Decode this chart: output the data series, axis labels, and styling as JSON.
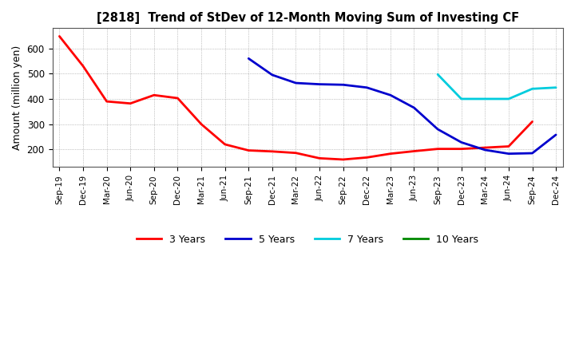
{
  "title": "[2818]  Trend of StDev of 12-Month Moving Sum of Investing CF",
  "ylabel": "Amount (million yen)",
  "background_color": "#ffffff",
  "grid_color": "#888888",
  "ylim": [
    130,
    680
  ],
  "yticks": [
    200,
    300,
    400,
    500,
    600
  ],
  "legend": [
    "3 Years",
    "5 Years",
    "7 Years",
    "10 Years"
  ],
  "legend_colors": [
    "#ff0000",
    "#0000cd",
    "#00ccdd",
    "#008800"
  ],
  "x_labels": [
    "Sep-19",
    "Dec-19",
    "Mar-20",
    "Jun-20",
    "Sep-20",
    "Dec-20",
    "Mar-21",
    "Jun-21",
    "Sep-21",
    "Dec-21",
    "Mar-22",
    "Jun-22",
    "Sep-22",
    "Dec-22",
    "Mar-23",
    "Jun-23",
    "Sep-23",
    "Dec-23",
    "Mar-24",
    "Jun-24",
    "Sep-24",
    "Dec-24"
  ],
  "series_3yr": {
    "x_indices": [
      0,
      1,
      2,
      3,
      4,
      5,
      6,
      7,
      8,
      9,
      10,
      11,
      12,
      13,
      14,
      15,
      16,
      17,
      18,
      19,
      20
    ],
    "y": [
      648,
      530,
      390,
      382,
      415,
      403,
      300,
      220,
      196,
      192,
      186,
      165,
      160,
      168,
      183,
      193,
      202,
      202,
      207,
      212,
      310
    ]
  },
  "series_5yr": {
    "x_indices": [
      8,
      9,
      10,
      11,
      12,
      13,
      14,
      15,
      16,
      17,
      18,
      19,
      20,
      21
    ],
    "y": [
      560,
      495,
      463,
      458,
      456,
      445,
      415,
      365,
      280,
      228,
      198,
      183,
      185,
      258
    ]
  },
  "series_7yr": {
    "x_indices": [
      16,
      17,
      18,
      19,
      20,
      21
    ],
    "y": [
      497,
      400,
      400,
      400,
      440,
      445
    ]
  },
  "series_10yr": {
    "x_indices": [],
    "y": []
  },
  "linewidth": 2.0
}
